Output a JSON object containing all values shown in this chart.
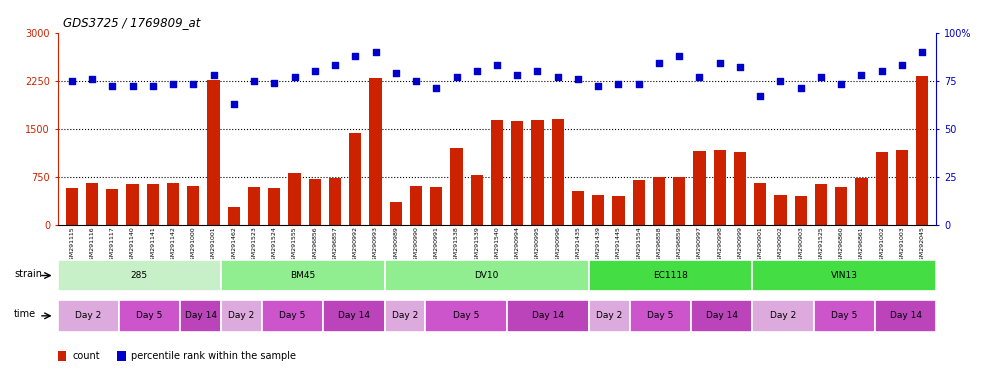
{
  "title": "GDS3725 / 1769809_at",
  "samples": [
    "GSM291115",
    "GSM291116",
    "GSM291117",
    "GSM291140",
    "GSM291141",
    "GSM291142",
    "GSM291000",
    "GSM291001",
    "GSM291462",
    "GSM291523",
    "GSM291524",
    "GSM291555",
    "GSM296856",
    "GSM296857",
    "GSM290992",
    "GSM290993",
    "GSM290989",
    "GSM290990",
    "GSM290991",
    "GSM291538",
    "GSM291539",
    "GSM291540",
    "GSM290994",
    "GSM290995",
    "GSM290996",
    "GSM291435",
    "GSM291439",
    "GSM291445",
    "GSM291554",
    "GSM296858",
    "GSM296859",
    "GSM290997",
    "GSM290998",
    "GSM290999",
    "GSM290901",
    "GSM290902",
    "GSM290903",
    "GSM291525",
    "GSM296860",
    "GSM296861",
    "GSM291002",
    "GSM291003",
    "GSM292045"
  ],
  "counts": [
    580,
    650,
    560,
    640,
    640,
    650,
    610,
    2260,
    270,
    590,
    580,
    800,
    720,
    730,
    1430,
    2290,
    350,
    610,
    590,
    1200,
    770,
    1630,
    1620,
    1640,
    1650,
    530,
    460,
    450,
    700,
    740,
    750,
    1150,
    1170,
    1130,
    650,
    460,
    450,
    640,
    590,
    730,
    1130,
    1160,
    2330
  ],
  "percentiles": [
    75,
    76,
    72,
    72,
    72,
    73,
    73,
    78,
    63,
    75,
    74,
    77,
    80,
    83,
    88,
    90,
    79,
    75,
    71,
    77,
    80,
    83,
    78,
    80,
    77,
    76,
    72,
    73,
    73,
    84,
    88,
    77,
    84,
    82,
    67,
    75,
    71,
    77,
    73,
    78,
    80,
    83,
    90
  ],
  "strains": [
    {
      "label": "285",
      "start": 0,
      "end": 8,
      "color": "#C8F0C8"
    },
    {
      "label": "BM45",
      "start": 8,
      "end": 16,
      "color": "#90EE90"
    },
    {
      "label": "DV10",
      "start": 16,
      "end": 26,
      "color": "#90EE90"
    },
    {
      "label": "EC1118",
      "start": 26,
      "end": 34,
      "color": "#44DD44"
    },
    {
      "label": "VIN13",
      "start": 34,
      "end": 43,
      "color": "#44DD44"
    }
  ],
  "time_groups": [
    {
      "label": "Day 2",
      "start": 0,
      "end": 3,
      "color": "#DDAADD"
    },
    {
      "label": "Day 5",
      "start": 3,
      "end": 6,
      "color": "#CC55CC"
    },
    {
      "label": "Day 14",
      "start": 6,
      "end": 8,
      "color": "#BB44BB"
    },
    {
      "label": "Day 2",
      "start": 8,
      "end": 10,
      "color": "#DDAADD"
    },
    {
      "label": "Day 5",
      "start": 10,
      "end": 13,
      "color": "#CC55CC"
    },
    {
      "label": "Day 14",
      "start": 13,
      "end": 16,
      "color": "#BB44BB"
    },
    {
      "label": "Day 2",
      "start": 16,
      "end": 18,
      "color": "#DDAADD"
    },
    {
      "label": "Day 5",
      "start": 18,
      "end": 22,
      "color": "#CC55CC"
    },
    {
      "label": "Day 14",
      "start": 22,
      "end": 26,
      "color": "#BB44BB"
    },
    {
      "label": "Day 2",
      "start": 26,
      "end": 28,
      "color": "#DDAADD"
    },
    {
      "label": "Day 5",
      "start": 28,
      "end": 31,
      "color": "#CC55CC"
    },
    {
      "label": "Day 14",
      "start": 31,
      "end": 34,
      "color": "#BB44BB"
    },
    {
      "label": "Day 2",
      "start": 34,
      "end": 37,
      "color": "#DDAADD"
    },
    {
      "label": "Day 5",
      "start": 37,
      "end": 40,
      "color": "#CC55CC"
    },
    {
      "label": "Day 14",
      "start": 40,
      "end": 43,
      "color": "#BB44BB"
    }
  ],
  "bar_color": "#CC2200",
  "dot_color": "#0000CC",
  "left_ylim": [
    0,
    3000
  ],
  "right_ylim": [
    0,
    100
  ],
  "left_yticks": [
    0,
    750,
    1500,
    2250,
    3000
  ],
  "right_yticks": [
    0,
    25,
    50,
    75,
    100
  ],
  "hline_values": [
    750,
    1500,
    2250
  ],
  "background_color": "#FFFFFF"
}
